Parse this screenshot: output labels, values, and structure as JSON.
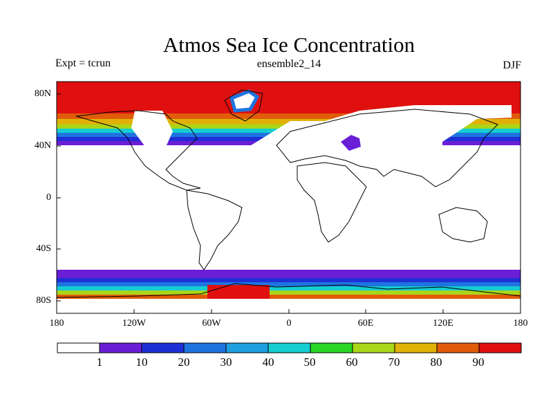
{
  "title": "Atmos Sea Ice Concentration",
  "expt_label": "Expt = tcrun",
  "ensemble_label": "ensemble2_14",
  "season_label": "DJF",
  "colors": {
    "land_outline": "#000000",
    "background": "#ffffff",
    "bins": [
      "#ffffff",
      "#6a1ed6",
      "#1f2fd6",
      "#1f74e0",
      "#1f9ee0",
      "#15cdd0",
      "#2ad626",
      "#aad61a",
      "#e0b208",
      "#e05c0a",
      "#e01010"
    ]
  },
  "chart_data": {
    "type": "heatmap",
    "title": "Atmos Sea Ice Concentration",
    "projection": "cylindrical-equidistant",
    "xlim": [
      -180,
      180
    ],
    "ylim": [
      -90,
      90
    ],
    "x_ticks": [
      -180,
      -120,
      -60,
      0,
      60,
      120,
      180
    ],
    "x_tick_labels": [
      "180",
      "120W",
      "60W",
      "0",
      "60E",
      "120E",
      "180"
    ],
    "y_ticks": [
      80,
      40,
      0,
      -40,
      -80
    ],
    "y_tick_labels": [
      "80N",
      "40N",
      "0",
      "40S",
      "80S"
    ],
    "colorbar": {
      "position": "bottom",
      "boundaries": [
        "1",
        "10",
        "20",
        "30",
        "40",
        "50",
        "60",
        "70",
        "80",
        "90"
      ],
      "bins": 11
    },
    "field_summary": "sea ice concentration >90 poleward of ~60N and around Antarctica; zero in tropics and mid-latitudes"
  }
}
